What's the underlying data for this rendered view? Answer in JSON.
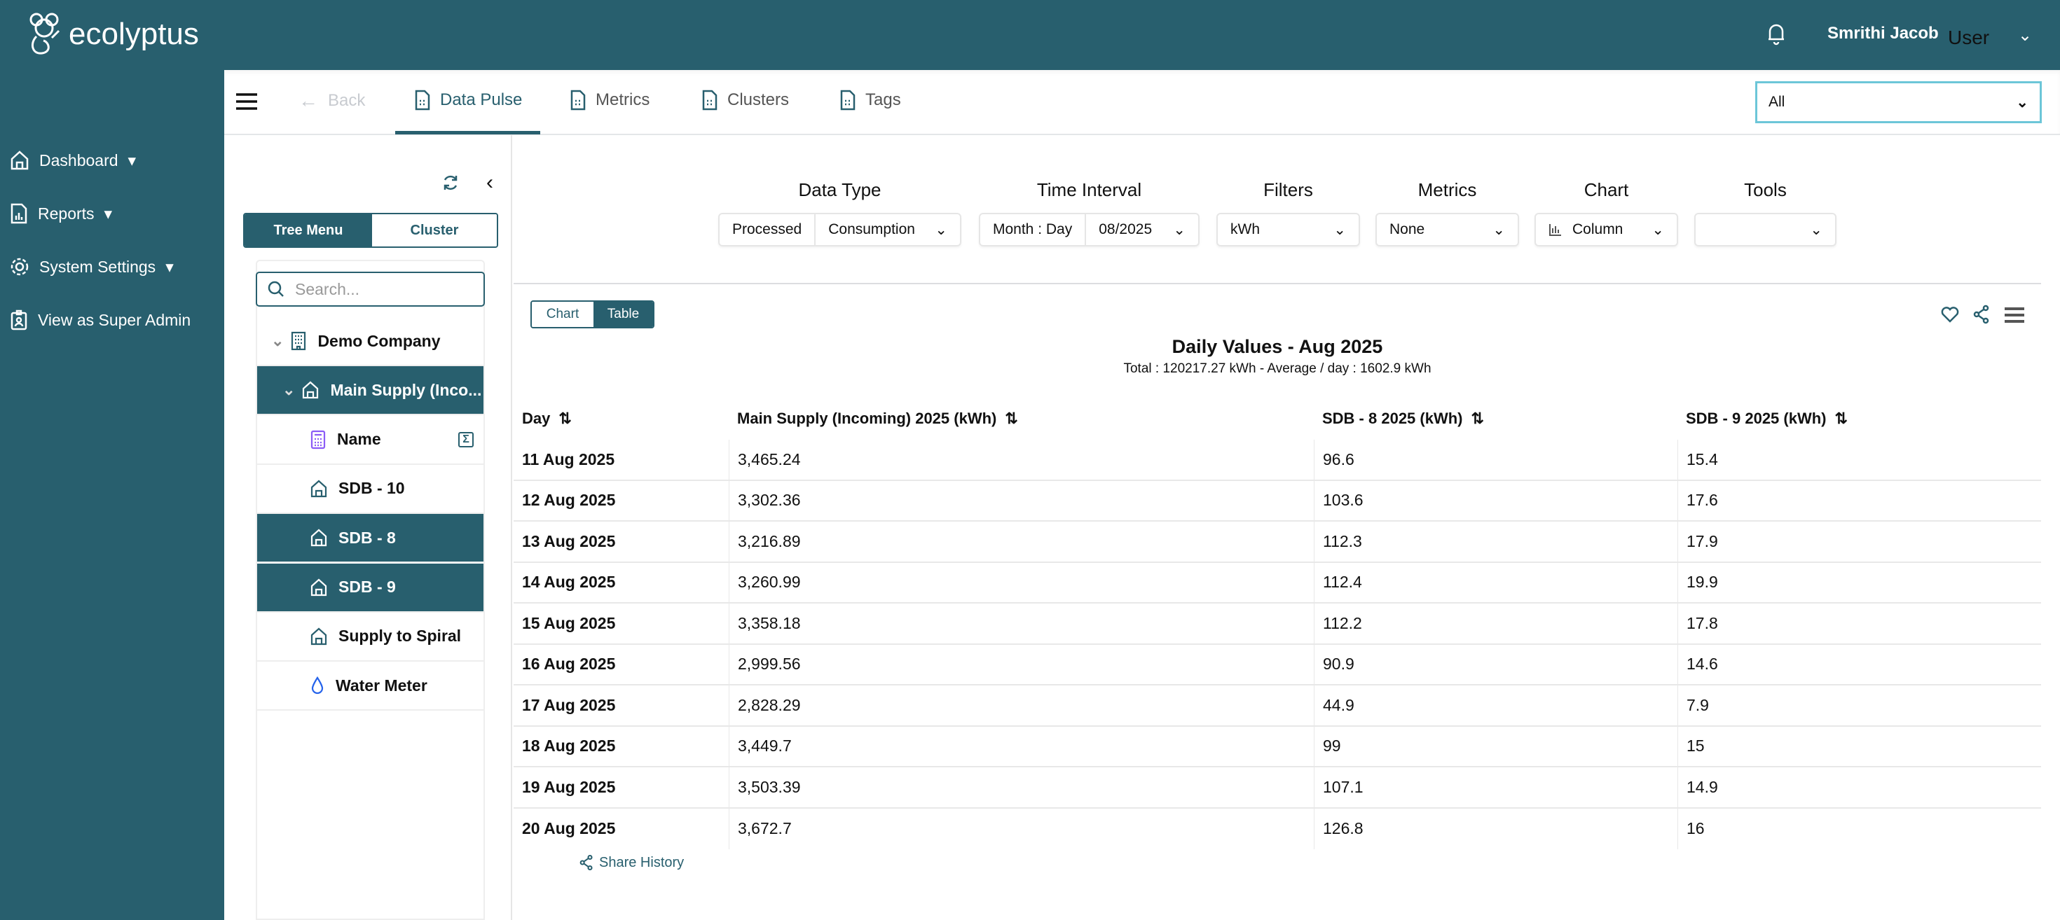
{
  "brand": {
    "name": "ecolyptus",
    "color": "#285f6e"
  },
  "header": {
    "user_name": "Smrithi Jacob",
    "user_role": "User"
  },
  "sidebar": {
    "items": [
      {
        "label": "Dashboard",
        "icon": "home-icon"
      },
      {
        "label": "Reports",
        "icon": "report-icon"
      },
      {
        "label": "System Settings",
        "icon": "gear-icon"
      },
      {
        "label": "View as Super Admin",
        "icon": "badge-icon"
      }
    ]
  },
  "tabs": {
    "back": "Back",
    "items": [
      "Data Pulse",
      "Metrics",
      "Clusters",
      "Tags"
    ],
    "active": "Data Pulse"
  },
  "site_select": {
    "value": "All"
  },
  "left_panel": {
    "toggle": {
      "tree": "Tree Menu",
      "cluster": "Cluster",
      "active": "Tree Menu"
    },
    "search_placeholder": "Search...",
    "tree": [
      {
        "label": "Demo Company",
        "icon": "building-icon",
        "level": 0,
        "selected": false,
        "expanded": true
      },
      {
        "label": "Main Supply (Inco...",
        "icon": "home-icon",
        "level": 1,
        "selected": true,
        "expanded": true
      },
      {
        "label": "Name",
        "icon": "calculator-icon",
        "level": 2,
        "selected": false,
        "sigma": true
      },
      {
        "label": "SDB - 10",
        "icon": "home-icon",
        "level": 2,
        "selected": false
      },
      {
        "label": "SDB - 8",
        "icon": "home-icon",
        "level": 2,
        "selected": true
      },
      {
        "label": "SDB - 9",
        "icon": "home-icon",
        "level": 2,
        "selected": true
      },
      {
        "label": "Supply to Spiral",
        "icon": "home-icon",
        "level": 2,
        "selected": false
      },
      {
        "label": "Water Meter",
        "icon": "water-drop-icon",
        "level": 2,
        "selected": false
      }
    ]
  },
  "controls": {
    "data_type": {
      "label": "Data Type",
      "mode": "Processed",
      "value": "Consumption"
    },
    "time_interval": {
      "label": "Time Interval",
      "interval": "Month : Day",
      "value": "08/2025"
    },
    "filters": {
      "label": "Filters",
      "value": "kWh"
    },
    "metrics": {
      "label": "Metrics",
      "value": "None"
    },
    "chart": {
      "label": "Chart",
      "value": "Column"
    },
    "tools": {
      "label": "Tools",
      "value": ""
    }
  },
  "view_toggle": {
    "chart": "Chart",
    "table": "Table",
    "active": "Table"
  },
  "report": {
    "title": "Daily Values - Aug 2025",
    "subtitle": "Total : 120217.27 kWh - Average / day : 1602.9 kWh",
    "columns": [
      "Day",
      "Main Supply (Incoming) 2025 (kWh)",
      "SDB - 8 2025 (kWh)",
      "SDB - 9 2025 (kWh)"
    ],
    "rows": [
      [
        "11 Aug 2025",
        "3,465.24",
        "96.6",
        "15.4"
      ],
      [
        "12 Aug 2025",
        "3,302.36",
        "103.6",
        "17.6"
      ],
      [
        "13 Aug 2025",
        "3,216.89",
        "112.3",
        "17.9"
      ],
      [
        "14 Aug 2025",
        "3,260.99",
        "112.4",
        "19.9"
      ],
      [
        "15 Aug 2025",
        "3,358.18",
        "112.2",
        "17.8"
      ],
      [
        "16 Aug 2025",
        "2,999.56",
        "90.9",
        "14.6"
      ],
      [
        "17 Aug 2025",
        "2,828.29",
        "44.9",
        "7.9"
      ],
      [
        "18 Aug 2025",
        "3,449.7",
        "99",
        "15"
      ],
      [
        "19 Aug 2025",
        "3,503.39",
        "107.1",
        "14.9"
      ],
      [
        "20 Aug 2025",
        "3,672.7",
        "126.8",
        "16"
      ]
    ],
    "share_history": "Share History"
  }
}
